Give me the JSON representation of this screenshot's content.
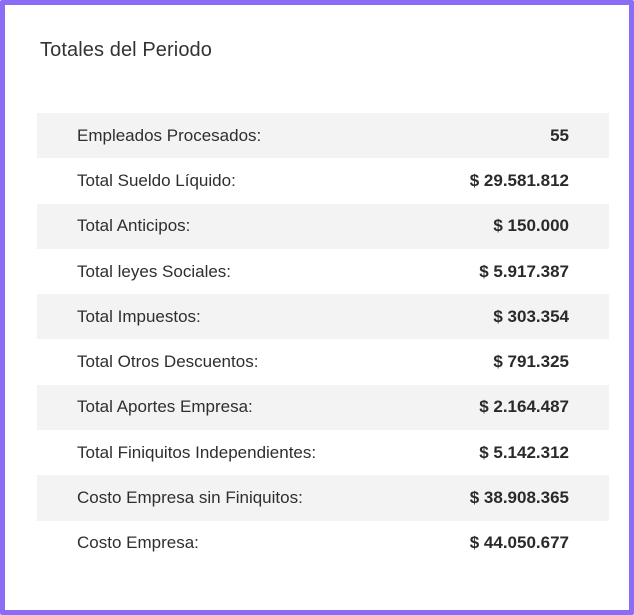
{
  "card": {
    "title": "Totales del Periodo"
  },
  "totals": [
    {
      "label": "Empleados Procesados:",
      "value": "55"
    },
    {
      "label": "Total Sueldo Líquido:",
      "value": "$ 29.581.812"
    },
    {
      "label": "Total Anticipos:",
      "value": "$ 150.000"
    },
    {
      "label": "Total leyes Sociales:",
      "value": "$ 5.917.387"
    },
    {
      "label": "Total Impuestos:",
      "value": "$ 303.354"
    },
    {
      "label": "Total Otros Descuentos:",
      "value": "$ 791.325"
    },
    {
      "label": "Total Aportes Empresa:",
      "value": "$ 2.164.487"
    },
    {
      "label": "Total Finiquitos Independientes:",
      "value": "$ 5.142.312"
    },
    {
      "label": "Costo Empresa sin Finiquitos:",
      "value": "$ 38.908.365"
    },
    {
      "label": "Costo Empresa:",
      "value": "$ 44.050.677"
    }
  ],
  "colors": {
    "frame_border": "#8a6cf5",
    "row_stripe": "#f3f3f3",
    "background": "#ffffff"
  }
}
